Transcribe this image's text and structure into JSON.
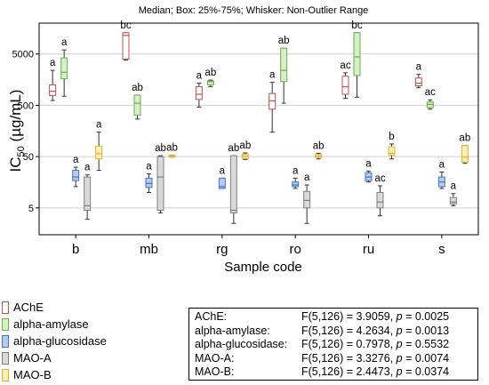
{
  "chart_data": {
    "type": "box",
    "title": "Median; Box: 25%-75%; Whisker: Non-Outlier Range",
    "xlabel": "Sample code",
    "ylabel": "IC50 (µg/mL)",
    "ylabel_parts": {
      "base": "IC",
      "sub": "50",
      "rest": " (µg/mL)"
    },
    "y_scale": "log",
    "ylim": [
      1.5,
      20000
    ],
    "yticks": [
      5,
      50,
      500,
      5000
    ],
    "grid": true,
    "categories": [
      "b",
      "mb",
      "rg",
      "ro",
      "ru",
      "s"
    ],
    "series": [
      {
        "name": "AChE",
        "color": "#c0504d",
        "fill": "#ffffff",
        "stats": [
          {
            "min": 620,
            "q1": 780,
            "median": 940,
            "q3": 1250,
            "max": 2400,
            "letter": "a"
          },
          {
            "min": 3800,
            "q1": 4000,
            "median": 11500,
            "q3": 13000,
            "max": 13000,
            "letter": "bc"
          },
          {
            "min": 460,
            "q1": 650,
            "median": 820,
            "q3": 1150,
            "max": 1350,
            "letter": "a"
          },
          {
            "min": 150,
            "q1": 420,
            "median": 610,
            "q3": 850,
            "max": 1400,
            "letter": "a"
          },
          {
            "min": 680,
            "q1": 820,
            "median": 1150,
            "q3": 1850,
            "max": 2150,
            "letter": "ac"
          },
          {
            "min": 1100,
            "q1": 1200,
            "median": 1350,
            "q3": 1700,
            "max": 2000,
            "letter": "a"
          }
        ]
      },
      {
        "name": "alpha-amylase",
        "color": "#70ad47",
        "fill": "#d6eecb",
        "stats": [
          {
            "min": 750,
            "q1": 1650,
            "median": 2200,
            "q3": 4200,
            "max": 6000,
            "letter": "a"
          },
          {
            "min": 270,
            "q1": 320,
            "median": 550,
            "q3": 790,
            "max": 790,
            "letter": "ab"
          },
          {
            "min": 1150,
            "q1": 1250,
            "median": 1450,
            "q3": 1500,
            "max": 1550,
            "letter": "ab"
          },
          {
            "min": 550,
            "q1": 1450,
            "median": 2400,
            "q3": 6500,
            "max": 6500,
            "letter": "ab"
          },
          {
            "min": 720,
            "q1": 1900,
            "median": 4400,
            "q3": 13000,
            "max": 13000,
            "letter": "bc"
          },
          {
            "min": 420,
            "q1": 450,
            "median": 520,
            "q3": 580,
            "max": 640,
            "letter": "ac"
          }
        ]
      },
      {
        "name": "alpha-glucosidase",
        "color": "#4472c4",
        "fill": "#b8cbee",
        "stats": [
          {
            "min": 13,
            "q1": 17,
            "median": 20,
            "q3": 27,
            "max": 31,
            "letter": "a"
          },
          {
            "min": 10,
            "q1": 12.5,
            "median": 15,
            "q3": 19,
            "max": 23,
            "letter": "a"
          },
          {
            "min": 12,
            "q1": 12,
            "median": 13,
            "q3": 19,
            "max": 19,
            "letter": "a"
          },
          {
            "min": 12,
            "q1": 13,
            "median": 14,
            "q3": 16,
            "max": 19,
            "letter": "a"
          },
          {
            "min": 16,
            "q1": 17,
            "median": 20,
            "q3": 24,
            "max": 26,
            "letter": "a"
          },
          {
            "min": 12,
            "q1": 13,
            "median": 16,
            "q3": 20,
            "max": 25,
            "letter": "a"
          }
        ]
      },
      {
        "name": "MAO-A",
        "color": "#7f7f7f",
        "fill": "#d9d9d9",
        "stats": [
          {
            "min": 3,
            "q1": 4.5,
            "median": 5.5,
            "q3": 20,
            "max": 22,
            "letter": "a"
          },
          {
            "min": 4,
            "q1": 4.5,
            "median": 20,
            "q3": 50,
            "max": 52,
            "letter": "ab"
          },
          {
            "min": 2.5,
            "q1": 4,
            "median": 4.5,
            "q3": 52,
            "max": 52,
            "letter": "ab"
          },
          {
            "min": 2.5,
            "q1": 5,
            "median": 7,
            "q3": 10.5,
            "max": 14,
            "letter": "a"
          },
          {
            "min": 3.5,
            "q1": 5,
            "median": 6.5,
            "q3": 10,
            "max": 13.5,
            "letter": "ac"
          },
          {
            "min": 5.5,
            "q1": 6,
            "median": 6.5,
            "q3": 8,
            "max": 9.5,
            "letter": "a"
          }
        ]
      },
      {
        "name": "MAO-B",
        "color": "#e0b030",
        "fill": "#fbefb5",
        "stats": [
          {
            "min": 27,
            "q1": 45,
            "median": 57,
            "q3": 80,
            "max": 150,
            "letter": "a"
          },
          {
            "min": 49,
            "q1": 49,
            "median": 51,
            "q3": 53,
            "max": 53,
            "letter": "ab"
          },
          {
            "min": 44,
            "q1": 46,
            "median": 51,
            "q3": 56,
            "max": 59,
            "letter": "ab"
          },
          {
            "min": 45,
            "q1": 48,
            "median": 51,
            "q3": 55,
            "max": 58,
            "letter": "ab"
          },
          {
            "min": 45,
            "q1": 53,
            "median": 58,
            "q3": 78,
            "max": 88,
            "letter": "b"
          },
          {
            "min": 37,
            "q1": 39,
            "median": 49,
            "q3": 82,
            "max": 82,
            "letter": "ab"
          }
        ]
      }
    ],
    "stats_box": [
      {
        "label": "AChE:",
        "text": "F(5,126) = 3.9059, p = 0.0025"
      },
      {
        "label": "alpha-amylase:",
        "text": "F(5,126) = 4.2634, p = 0.0013"
      },
      {
        "label": "alpha-glucosidase:",
        "text": "F(5,126) = 0.7978, p = 0.5532"
      },
      {
        "label": "MAO-A:",
        "text": "F(5,126) = 3.3276, p = 0.0074"
      },
      {
        "label": "MAO-B:",
        "text": "F(5,126) = 2.4473, p = 0.0374"
      }
    ]
  }
}
